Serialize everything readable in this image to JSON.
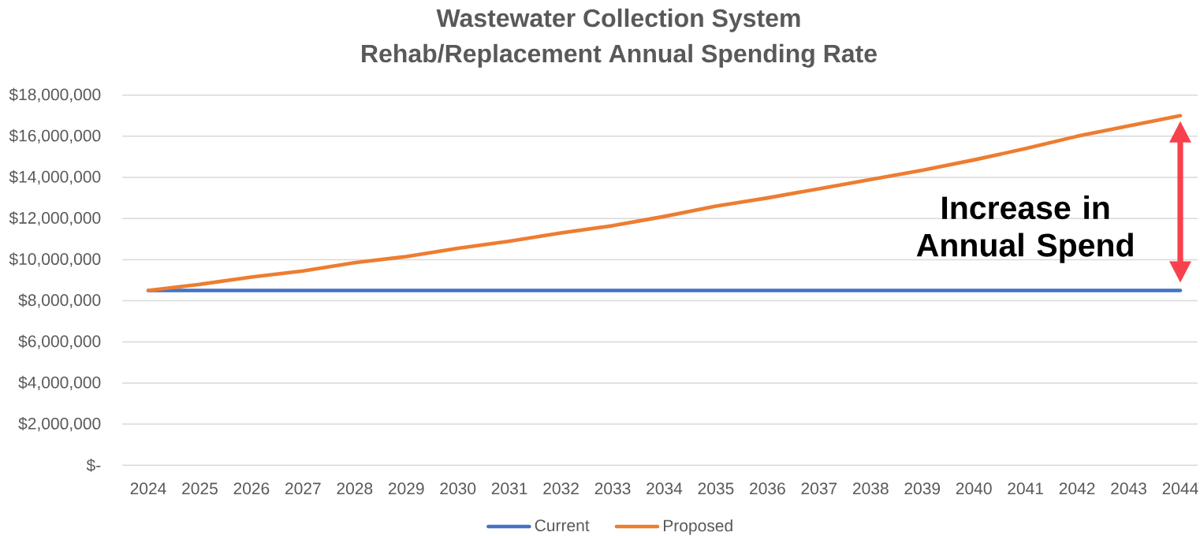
{
  "chart_data": {
    "type": "line",
    "title": "Wastewater Collection System",
    "subtitle": "Rehab/Replacement Annual Spending Rate",
    "categories": [
      "2024",
      "2025",
      "2026",
      "2027",
      "2028",
      "2029",
      "2030",
      "2031",
      "2032",
      "2033",
      "2034",
      "2035",
      "2036",
      "2037",
      "2038",
      "2039",
      "2040",
      "2041",
      "2042",
      "2043",
      "2044"
    ],
    "series": [
      {
        "name": "Current",
        "color": "#4472c4",
        "values": [
          8500000,
          8500000,
          8500000,
          8500000,
          8500000,
          8500000,
          8500000,
          8500000,
          8500000,
          8500000,
          8500000,
          8500000,
          8500000,
          8500000,
          8500000,
          8500000,
          8500000,
          8500000,
          8500000,
          8500000,
          8500000
        ]
      },
      {
        "name": "Proposed",
        "color": "#ed7d31",
        "values": [
          8500000,
          8800000,
          9150000,
          9450000,
          9850000,
          10150000,
          10550000,
          10900000,
          11300000,
          11650000,
          12100000,
          12600000,
          13000000,
          13450000,
          13900000,
          14350000,
          14850000,
          15400000,
          16000000,
          16500000,
          17000000
        ]
      }
    ],
    "ylim": [
      0,
      18000000
    ],
    "yticks": [
      {
        "value": 0,
        "label": "$-"
      },
      {
        "value": 2000000,
        "label": "$2,000,000"
      },
      {
        "value": 4000000,
        "label": "$4,000,000"
      },
      {
        "value": 6000000,
        "label": "$6,000,000"
      },
      {
        "value": 8000000,
        "label": "$8,000,000"
      },
      {
        "value": 10000000,
        "label": "$10,000,000"
      },
      {
        "value": 12000000,
        "label": "$12,000,000"
      },
      {
        "value": 14000000,
        "label": "$14,000,000"
      },
      {
        "value": 16000000,
        "label": "$16,000,000"
      },
      {
        "value": 18000000,
        "label": "$18,000,000"
      }
    ],
    "grid": "y",
    "legend": "bottom",
    "marker": "none",
    "line_style": "solid",
    "annotations": [
      "Increase in Annual Spend"
    ]
  }
}
